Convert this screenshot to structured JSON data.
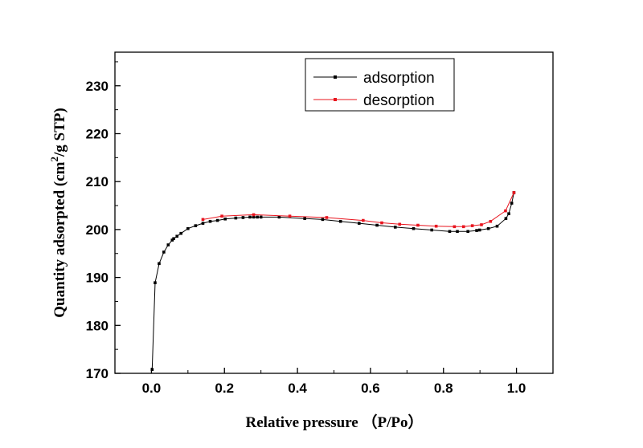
{
  "chart_data": {
    "type": "line",
    "title": "",
    "xlabel": "Relative pressure （P/Po）",
    "ylabel_main": "Quantity adsorpted (cm",
    "ylabel_sup": "2",
    "ylabel_tail": "/g  STP)",
    "xlim": [
      -0.1,
      1.1
    ],
    "ylim": [
      170,
      237
    ],
    "xticks": [
      0.0,
      0.2,
      0.4,
      0.6,
      0.8,
      1.0
    ],
    "xtick_labels": [
      "0.0",
      "0.2",
      "0.4",
      "0.6",
      "0.8",
      "1.0"
    ],
    "yticks": [
      170,
      180,
      190,
      200,
      210,
      220,
      230
    ],
    "ytick_labels": [
      "170",
      "180",
      "190",
      "200",
      "210",
      "220",
      "230"
    ],
    "grid": false,
    "legend_position": "top-right",
    "series": [
      {
        "name": "adsorption",
        "color": "#000000",
        "x": [
          0.002,
          0.01,
          0.021,
          0.034,
          0.046,
          0.057,
          0.061,
          0.07,
          0.081,
          0.1,
          0.121,
          0.141,
          0.161,
          0.181,
          0.202,
          0.231,
          0.251,
          0.27,
          0.28,
          0.29,
          0.3,
          0.35,
          0.42,
          0.469,
          0.518,
          0.569,
          0.618,
          0.668,
          0.718,
          0.768,
          0.817,
          0.838,
          0.867,
          0.891,
          0.899,
          0.923,
          0.947,
          0.971,
          0.979,
          0.987,
          0.993
        ],
        "y": [
          170.8,
          188.9,
          192.9,
          195.3,
          196.8,
          197.8,
          198.1,
          198.6,
          199.2,
          200.2,
          200.8,
          201.3,
          201.7,
          201.9,
          202.2,
          202.4,
          202.5,
          202.6,
          202.6,
          202.6,
          202.6,
          202.6,
          202.3,
          202.1,
          201.7,
          201.3,
          200.9,
          200.5,
          200.2,
          199.9,
          199.6,
          199.6,
          199.6,
          199.8,
          199.9,
          200.2,
          200.7,
          202.3,
          203.3,
          205.5,
          207.7
        ]
      },
      {
        "name": "desorption",
        "color": "#e8141e",
        "x": [
          0.141,
          0.193,
          0.28,
          0.379,
          0.48,
          0.58,
          0.631,
          0.68,
          0.73,
          0.78,
          0.83,
          0.855,
          0.879,
          0.904,
          0.929,
          0.97,
          0.993
        ],
        "y": [
          202.1,
          202.8,
          203.1,
          202.8,
          202.5,
          201.9,
          201.4,
          201.1,
          200.9,
          200.7,
          200.6,
          200.6,
          200.8,
          201.0,
          201.7,
          203.9,
          207.7
        ]
      }
    ]
  }
}
